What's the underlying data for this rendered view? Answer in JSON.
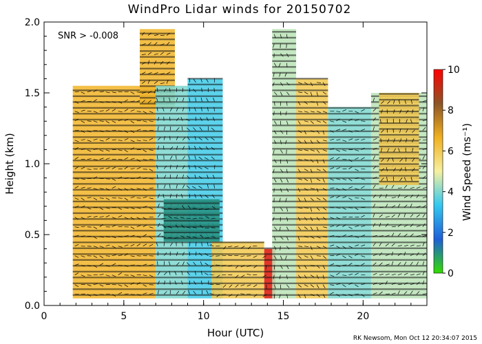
{
  "chart_data": {
    "type": "heatmap",
    "title": "WindPro Lidar winds for 20150702",
    "xlabel": "Hour (UTC)",
    "ylabel": "Height (km)",
    "xlim": [
      0,
      24
    ],
    "ylim": [
      0.0,
      2.0
    ],
    "xticks": [
      "0",
      "5",
      "10",
      "15",
      "20"
    ],
    "yticks": [
      "0.0",
      "0.5",
      "1.0",
      "1.5",
      "2.0"
    ],
    "annotation": "SNR > -0.008",
    "colorbar": {
      "label": "Wind Speed (ms⁻¹)",
      "range": [
        0,
        10
      ],
      "ticks": [
        "0",
        "2",
        "4",
        "6",
        "8",
        "10"
      ],
      "colors": [
        "#33dd00",
        "#1f5fd8",
        "#33c8f0",
        "#f6f0a0",
        "#f0b020",
        "#8c5528",
        "#ff0000"
      ]
    },
    "regions": [
      {
        "x": [
          1.8,
          7.0
        ],
        "y": [
          0.05,
          1.55
        ],
        "speed": 6.5
      },
      {
        "x": [
          6.0,
          8.2
        ],
        "y": [
          1.4,
          1.95
        ],
        "speed": 6.5
      },
      {
        "x": [
          7.0,
          9.0
        ],
        "y": [
          0.05,
          1.55
        ],
        "speed": 4.0
      },
      {
        "x": [
          9.0,
          11.2
        ],
        "y": [
          0.05,
          1.6
        ],
        "speed": 3.5
      },
      {
        "x": [
          7.5,
          11.0
        ],
        "y": [
          0.45,
          0.75
        ],
        "speed": 1.0
      },
      {
        "x": [
          10.5,
          13.8
        ],
        "y": [
          0.05,
          0.45
        ],
        "speed": 6.0
      },
      {
        "x": [
          13.8,
          14.5
        ],
        "y": [
          0.05,
          0.4
        ],
        "speed": 9.5
      },
      {
        "x": [
          14.3,
          15.8
        ],
        "y": [
          0.05,
          1.95
        ],
        "speed": 4.5
      },
      {
        "x": [
          15.8,
          17.8
        ],
        "y": [
          0.05,
          1.6
        ],
        "speed": 6.0
      },
      {
        "x": [
          17.8,
          20.5
        ],
        "y": [
          0.05,
          1.4
        ],
        "speed": 4.0
      },
      {
        "x": [
          20.5,
          24.0
        ],
        "y": [
          0.05,
          1.5
        ],
        "speed": 4.5
      },
      {
        "x": [
          21.0,
          23.5
        ],
        "y": [
          0.85,
          1.5
        ],
        "speed": 6.0
      }
    ]
  },
  "credit": "RK Newsom, Mon Oct 12 20:34:07 2015"
}
